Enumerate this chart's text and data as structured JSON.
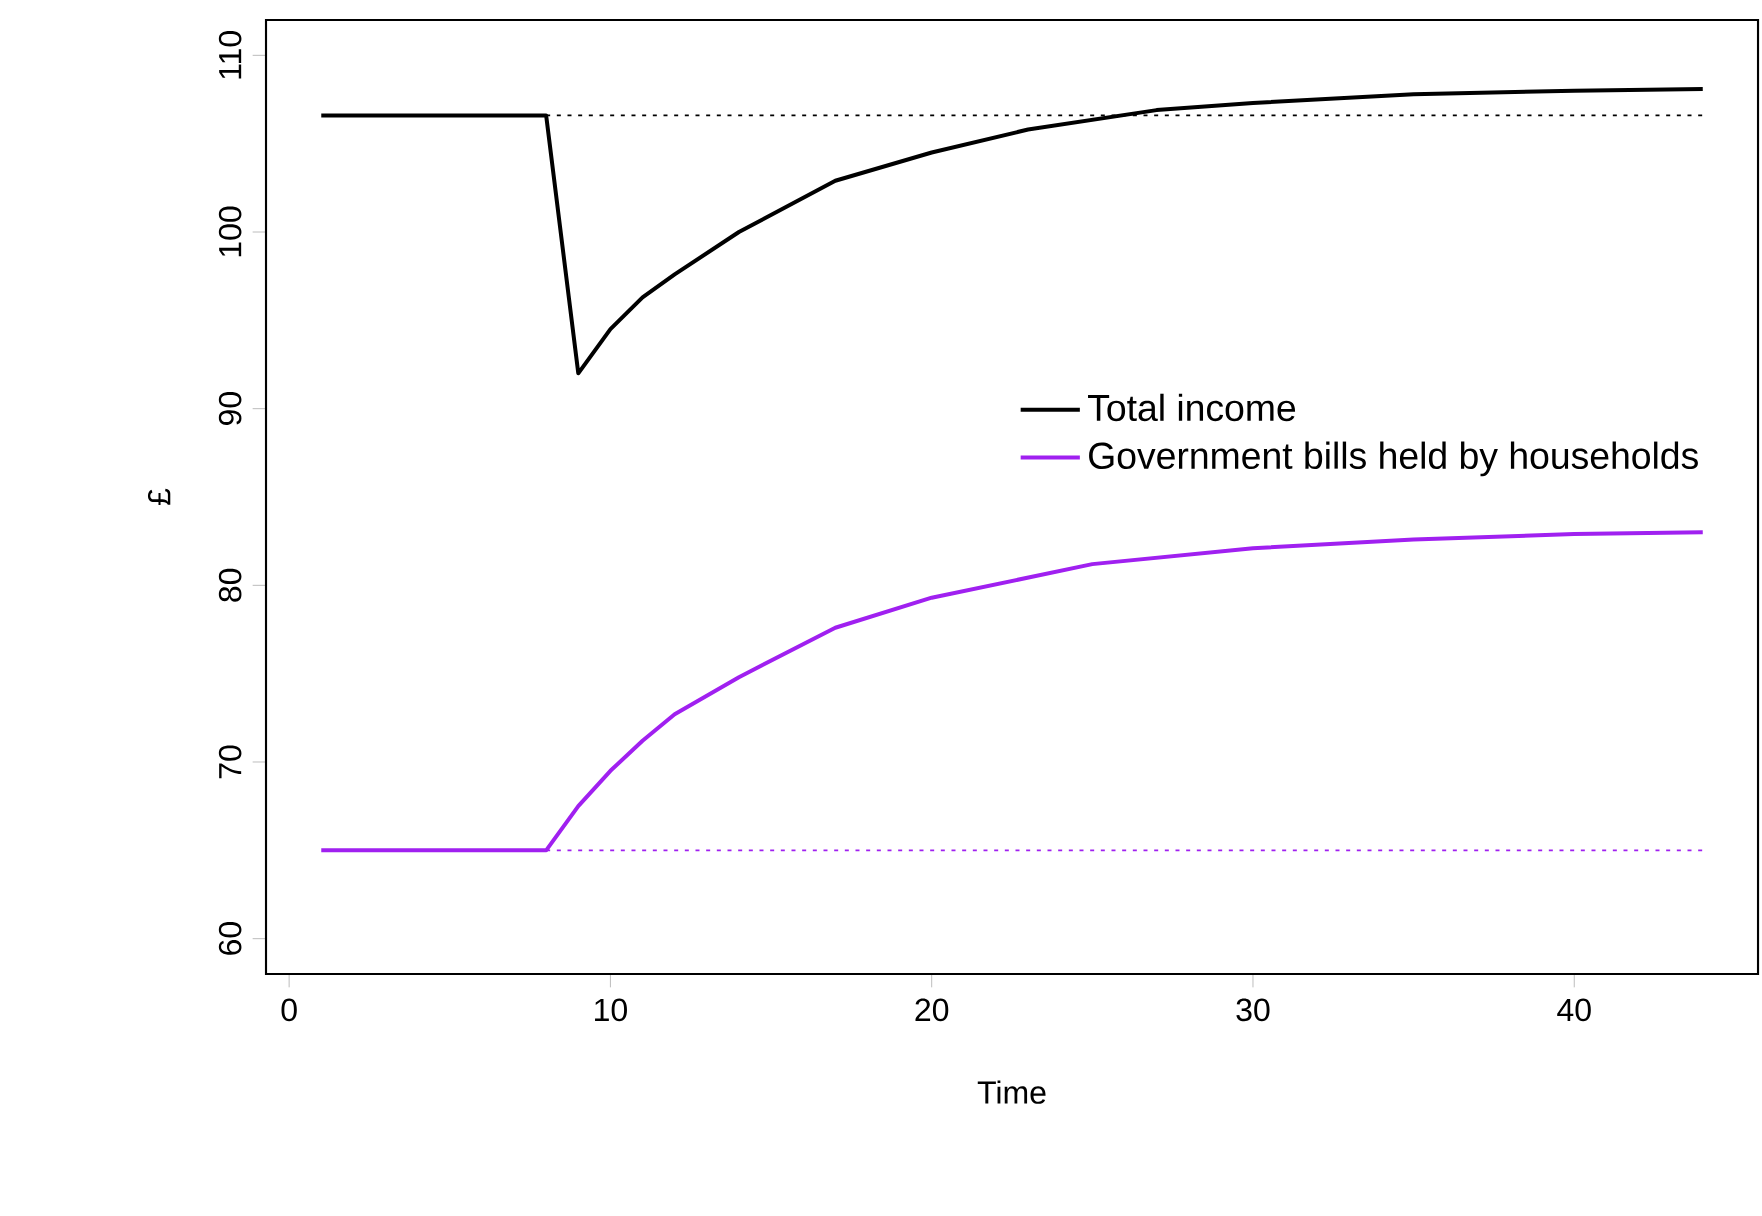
{
  "chart_data": {
    "type": "line",
    "xlabel": "Time",
    "ylabel": "£",
    "xlim": [
      -0.72,
      45.72
    ],
    "ylim": [
      58,
      112
    ],
    "xticks": [
      0,
      10,
      20,
      30,
      40
    ],
    "yticks": [
      60,
      70,
      80,
      90,
      100,
      110
    ],
    "grid": false,
    "legend": "right",
    "marker": "none",
    "series": [
      {
        "name": "Total income",
        "color": "#000000",
        "line_style": "solid",
        "x": [
          1,
          8,
          9,
          10,
          11,
          12,
          14,
          17,
          20,
          23,
          27,
          30,
          35,
          40,
          44
        ],
        "values": [
          106.6,
          106.6,
          92,
          94.5,
          96.3,
          97.6,
          100,
          102.9,
          104.5,
          105.8,
          106.9,
          107.3,
          107.8,
          108.0,
          108.1
        ]
      },
      {
        "name": "Government bills held by households",
        "color": "#a020f0",
        "line_style": "solid",
        "x": [
          1,
          8,
          9,
          10,
          11,
          12,
          14,
          17,
          20,
          25,
          30,
          35,
          40,
          44
        ],
        "values": [
          65,
          65,
          67.5,
          69.5,
          71.2,
          72.7,
          74.8,
          77.6,
          79.3,
          81.2,
          82.1,
          82.6,
          82.9,
          83.0
        ]
      },
      {
        "color": "#000000",
        "line_style": "dotted",
        "x": [
          8,
          44
        ],
        "values": [
          106.6,
          106.6
        ]
      },
      {
        "color": "#a020f0",
        "line_style": "dotted",
        "x": [
          8,
          44
        ],
        "values": [
          65,
          65
        ]
      }
    ]
  }
}
